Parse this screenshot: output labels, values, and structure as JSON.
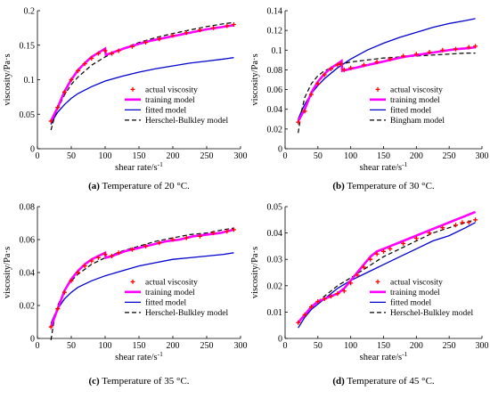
{
  "figure": {
    "panels": [
      {
        "id": "a",
        "label": "(a)",
        "caption": "Temperature of 20 °C."
      },
      {
        "id": "b",
        "label": "(b)",
        "caption": "Temperature of 30 °C."
      },
      {
        "id": "c",
        "label": "(c)",
        "caption": "Temperature of 35 °C."
      },
      {
        "id": "d",
        "label": "(d)",
        "caption": "Temperature of 45 °C."
      }
    ]
  },
  "colors": {
    "actual": "#ff0000",
    "training": "#ff00ff",
    "fitted": "#0000cc",
    "reference": "#000000",
    "axis": "#000000"
  },
  "chart_data": [
    {
      "type": "line",
      "panel": "a",
      "xlabel": "shear rate/s",
      "xlabel_sup": "-1",
      "ylabel": "viscosity/Pa·s",
      "xlim": [
        0,
        300
      ],
      "ylim": [
        0,
        0.2
      ],
      "xticks": [
        0,
        50,
        100,
        150,
        200,
        250,
        300
      ],
      "yticks": [
        0,
        0.05,
        0.1,
        0.15,
        0.2
      ],
      "ytick_labels": [
        "0",
        "0.05",
        "0.1",
        "0.15",
        "0.2"
      ],
      "legend_position": "lower-right",
      "series": [
        {
          "name": "actual viscosity",
          "style": "markers",
          "x": [
            20,
            30,
            40,
            50,
            60,
            70,
            80,
            90,
            100,
            110,
            120,
            140,
            160,
            180,
            200,
            220,
            240,
            260,
            280,
            290
          ],
          "y": [
            0.04,
            0.06,
            0.082,
            0.1,
            0.113,
            0.123,
            0.131,
            0.138,
            0.142,
            0.138,
            0.142,
            0.148,
            0.154,
            0.159,
            0.164,
            0.168,
            0.172,
            0.175,
            0.178,
            0.18
          ]
        },
        {
          "name": "training model",
          "style": "training",
          "x": [
            20,
            30,
            40,
            50,
            60,
            70,
            80,
            90,
            100,
            101,
            110,
            130,
            150,
            170,
            190,
            210,
            230,
            250,
            270,
            290
          ],
          "y": [
            0.04,
            0.06,
            0.083,
            0.1,
            0.114,
            0.124,
            0.133,
            0.139,
            0.145,
            0.136,
            0.139,
            0.146,
            0.152,
            0.157,
            0.161,
            0.165,
            0.169,
            0.173,
            0.176,
            0.179
          ]
        },
        {
          "name": "fitted model",
          "style": "fitted",
          "x": [
            20,
            25,
            30,
            40,
            50,
            60,
            80,
            100,
            125,
            150,
            175,
            200,
            225,
            250,
            275,
            290
          ],
          "y": [
            0.035,
            0.045,
            0.053,
            0.064,
            0.073,
            0.08,
            0.09,
            0.098,
            0.105,
            0.111,
            0.116,
            0.12,
            0.124,
            0.127,
            0.13,
            0.132
          ]
        },
        {
          "name": "Herschel-Bulkley model",
          "style": "dashed",
          "x": [
            20,
            25,
            30,
            40,
            50,
            60,
            80,
            100,
            125,
            150,
            175,
            200,
            225,
            250,
            275,
            290
          ],
          "y": [
            0.027,
            0.045,
            0.058,
            0.078,
            0.093,
            0.104,
            0.121,
            0.133,
            0.145,
            0.154,
            0.161,
            0.167,
            0.172,
            0.177,
            0.181,
            0.183
          ]
        }
      ]
    },
    {
      "type": "line",
      "panel": "b",
      "xlabel": "shear rate/s",
      "xlabel_sup": "-1",
      "ylabel": "viscosity/Pa·s",
      "xlim": [
        0,
        300
      ],
      "ylim": [
        0,
        0.14
      ],
      "xticks": [
        0,
        50,
        100,
        150,
        200,
        250,
        300
      ],
      "yticks": [
        0,
        0.02,
        0.04,
        0.06,
        0.08,
        0.1,
        0.12,
        0.14
      ],
      "ytick_labels": [
        "0",
        "0.02",
        "0.04",
        "0.06",
        "0.08",
        "0.1",
        "0.12",
        "0.14"
      ],
      "legend_position": "lower-right",
      "series": [
        {
          "name": "actual viscosity",
          "style": "markers",
          "x": [
            20,
            30,
            40,
            50,
            60,
            70,
            80,
            85,
            90,
            100,
            120,
            140,
            160,
            180,
            200,
            220,
            240,
            260,
            280,
            290
          ],
          "y": [
            0.027,
            0.038,
            0.055,
            0.066,
            0.075,
            0.081,
            0.085,
            0.086,
            0.08,
            0.082,
            0.085,
            0.088,
            0.091,
            0.094,
            0.096,
            0.098,
            0.1,
            0.101,
            0.103,
            0.104
          ]
        },
        {
          "name": "training model",
          "style": "training",
          "x": [
            20,
            30,
            40,
            50,
            60,
            70,
            80,
            86,
            87,
            100,
            120,
            140,
            160,
            180,
            200,
            220,
            240,
            260,
            280,
            290
          ],
          "y": [
            0.028,
            0.04,
            0.057,
            0.068,
            0.076,
            0.082,
            0.086,
            0.089,
            0.079,
            0.081,
            0.084,
            0.087,
            0.09,
            0.093,
            0.095,
            0.097,
            0.099,
            0.101,
            0.102,
            0.103
          ]
        },
        {
          "name": "fitted model",
          "style": "fitted",
          "x": [
            20,
            25,
            30,
            40,
            50,
            60,
            80,
            100,
            125,
            150,
            175,
            200,
            225,
            250,
            275,
            290
          ],
          "y": [
            0.03,
            0.038,
            0.045,
            0.056,
            0.064,
            0.071,
            0.082,
            0.091,
            0.1,
            0.107,
            0.113,
            0.118,
            0.123,
            0.127,
            0.13,
            0.132
          ]
        },
        {
          "name": "Bingham model",
          "style": "dashed",
          "x": [
            20,
            25,
            30,
            40,
            50,
            60,
            80,
            100,
            125,
            150,
            175,
            200,
            225,
            250,
            275,
            290
          ],
          "y": [
            0.016,
            0.038,
            0.052,
            0.066,
            0.074,
            0.079,
            0.085,
            0.088,
            0.09,
            0.092,
            0.093,
            0.094,
            0.095,
            0.096,
            0.097,
            0.097
          ]
        }
      ]
    },
    {
      "type": "line",
      "panel": "c",
      "xlabel": "shear rate/s",
      "xlabel_sup": "-1",
      "ylabel": "viscosity/Pa·s",
      "xlim": [
        0,
        300
      ],
      "ylim": [
        0,
        0.08
      ],
      "xticks": [
        0,
        50,
        100,
        150,
        200,
        250,
        300
      ],
      "yticks": [
        0,
        0.02,
        0.04,
        0.06,
        0.08
      ],
      "ytick_labels": [
        "0",
        "0.02",
        "0.04",
        "0.06",
        "0.08"
      ],
      "legend_position": "lower-right",
      "series": [
        {
          "name": "actual viscosity",
          "style": "markers",
          "x": [
            20,
            30,
            40,
            50,
            60,
            70,
            80,
            90,
            100,
            110,
            120,
            140,
            160,
            180,
            200,
            220,
            240,
            260,
            280,
            290
          ],
          "y": [
            0.007,
            0.018,
            0.028,
            0.035,
            0.04,
            0.044,
            0.047,
            0.049,
            0.051,
            0.05,
            0.052,
            0.054,
            0.056,
            0.058,
            0.06,
            0.061,
            0.062,
            0.064,
            0.065,
            0.066
          ]
        },
        {
          "name": "training model",
          "style": "training",
          "x": [
            20,
            30,
            40,
            50,
            60,
            70,
            80,
            90,
            100,
            101,
            110,
            130,
            150,
            170,
            190,
            210,
            230,
            250,
            270,
            290
          ],
          "y": [
            0.007,
            0.018,
            0.029,
            0.036,
            0.041,
            0.045,
            0.048,
            0.05,
            0.052,
            0.049,
            0.05,
            0.053,
            0.055,
            0.057,
            0.059,
            0.06,
            0.062,
            0.063,
            0.064,
            0.066
          ]
        },
        {
          "name": "fitted model",
          "style": "fitted",
          "x": [
            20,
            25,
            30,
            40,
            50,
            60,
            80,
            100,
            125,
            150,
            175,
            200,
            225,
            250,
            275,
            290
          ],
          "y": [
            0.009,
            0.014,
            0.018,
            0.024,
            0.028,
            0.031,
            0.035,
            0.038,
            0.041,
            0.044,
            0.046,
            0.048,
            0.049,
            0.05,
            0.051,
            0.052
          ]
        },
        {
          "name": "Herschel-Bulkley model",
          "style": "dashed",
          "x": [
            20,
            25,
            30,
            40,
            50,
            60,
            80,
            100,
            125,
            150,
            175,
            200,
            225,
            250,
            275,
            290
          ],
          "y": [
            -0.001,
            0.012,
            0.02,
            0.029,
            0.035,
            0.039,
            0.045,
            0.049,
            0.053,
            0.056,
            0.059,
            0.061,
            0.063,
            0.064,
            0.066,
            0.067
          ]
        }
      ]
    },
    {
      "type": "line",
      "panel": "d",
      "xlabel": "shear rate/s",
      "xlabel_sup": "-1",
      "ylabel": "viscosity/Pa·s",
      "xlim": [
        0,
        300
      ],
      "ylim": [
        0,
        0.05
      ],
      "xticks": [
        0,
        50,
        100,
        150,
        200,
        250,
        300
      ],
      "yticks": [
        0,
        0.01,
        0.02,
        0.03,
        0.04,
        0.05
      ],
      "ytick_labels": [
        "0",
        "0.01",
        "0.02",
        "0.03",
        "0.04",
        "0.05"
      ],
      "legend_position": "lower-right",
      "series": [
        {
          "name": "actual viscosity",
          "style": "markers",
          "x": [
            20,
            30,
            40,
            50,
            60,
            70,
            80,
            90,
            100,
            110,
            120,
            130,
            140,
            150,
            160,
            180,
            200,
            220,
            240,
            260,
            270,
            280,
            290
          ],
          "y": [
            0.006,
            0.009,
            0.012,
            0.014,
            0.015,
            0.016,
            0.017,
            0.018,
            0.021,
            0.024,
            0.027,
            0.03,
            0.032,
            0.033,
            0.034,
            0.036,
            0.038,
            0.04,
            0.042,
            0.043,
            0.044,
            0.044,
            0.045
          ]
        },
        {
          "name": "training model",
          "style": "training",
          "x": [
            20,
            30,
            40,
            50,
            60,
            70,
            80,
            90,
            100,
            110,
            120,
            130,
            140,
            150,
            160,
            180,
            200,
            220,
            240,
            260,
            280,
            290
          ],
          "y": [
            0.006,
            0.009,
            0.012,
            0.014,
            0.015,
            0.016,
            0.017,
            0.019,
            0.022,
            0.025,
            0.028,
            0.031,
            0.033,
            0.034,
            0.035,
            0.037,
            0.039,
            0.041,
            0.043,
            0.045,
            0.047,
            0.048
          ]
        },
        {
          "name": "fitted model",
          "style": "fitted",
          "x": [
            20,
            25,
            30,
            40,
            50,
            60,
            80,
            100,
            125,
            150,
            175,
            200,
            225,
            250,
            275,
            290
          ],
          "y": [
            0.004,
            0.006,
            0.008,
            0.011,
            0.013,
            0.015,
            0.019,
            0.022,
            0.025,
            0.028,
            0.031,
            0.034,
            0.037,
            0.039,
            0.042,
            0.044
          ]
        },
        {
          "name": "Herschel-Bulkley model",
          "style": "dashed",
          "x": [
            20,
            25,
            30,
            40,
            50,
            60,
            80,
            100,
            125,
            150,
            175,
            200,
            225,
            250,
            275,
            290
          ],
          "y": [
            0.006,
            0.008,
            0.009,
            0.012,
            0.014,
            0.016,
            0.02,
            0.023,
            0.027,
            0.031,
            0.034,
            0.037,
            0.04,
            0.042,
            0.044,
            0.045
          ]
        }
      ]
    }
  ]
}
